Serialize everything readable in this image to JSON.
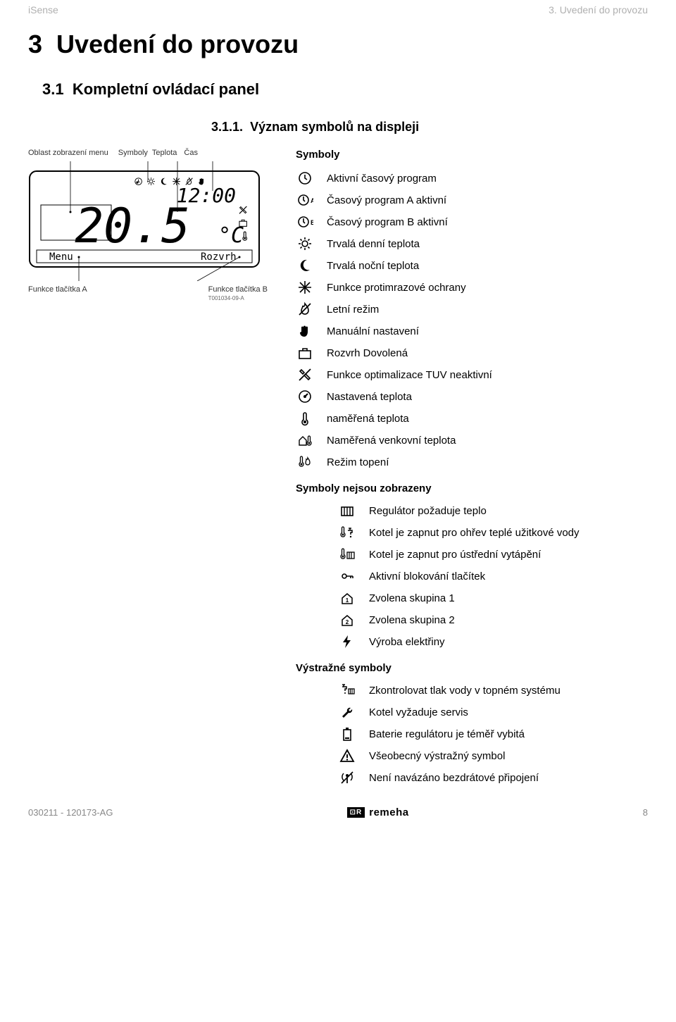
{
  "header": {
    "left": "iSense",
    "right": "3. Uvedení do provozu"
  },
  "section": {
    "number": "3",
    "title": "Uvedení do provozu"
  },
  "subsection": {
    "number": "3.1",
    "title": "Kompletní ovládací panel"
  },
  "subsub": {
    "number": "3.1.1.",
    "title": "Význam symbolů na displeji"
  },
  "diagram": {
    "top_labels": {
      "area": "Oblast zobrazení menu",
      "symbols": "Symboly",
      "temp": "Teplota",
      "time": "Čas"
    },
    "time_value": "12:00",
    "temp_value": "20.5",
    "temp_unit": "°C",
    "btn_left": "Menu",
    "btn_right": "Rozvrh",
    "bottom_labels": {
      "func_a": "Funkce tlačítka A",
      "func_b": "Funkce tlačítka B",
      "ref": "T001034-09-A"
    }
  },
  "legend": {
    "title": "Symboly",
    "group1": [
      {
        "icon": "clock",
        "label": "Aktivní časový program"
      },
      {
        "icon": "clock-a",
        "label": "Časový program A aktivní"
      },
      {
        "icon": "clock-b",
        "label": "Časový program B aktivní"
      },
      {
        "icon": "sun",
        "label": "Trvalá denní teplota"
      },
      {
        "icon": "moon",
        "label": "Trvalá noční teplota"
      },
      {
        "icon": "snowflake",
        "label": "Funkce protimrazové ochrany"
      },
      {
        "icon": "flame-off",
        "label": "Letní režim"
      },
      {
        "icon": "hand",
        "label": "Manuální nastavení"
      },
      {
        "icon": "suitcase",
        "label": "Rozvrh Dovolená"
      },
      {
        "icon": "tool-off",
        "label": "Funkce optimalizace TUV neaktivní"
      },
      {
        "icon": "dial",
        "label": "Nastavená teplota"
      },
      {
        "icon": "thermo",
        "label": "naměřená teplota"
      },
      {
        "icon": "thermo-house",
        "label": "Naměřená venkovní teplota"
      },
      {
        "icon": "thermo-flame",
        "label": "Režim topení"
      }
    ],
    "group2_title": "Symboly nejsou zobrazeny",
    "group2": [
      {
        "icon": "radiator",
        "label": "Regulátor požaduje teplo"
      },
      {
        "icon": "thermo-tap",
        "label": "Kotel je zapnut pro ohřev teplé užitkové vody"
      },
      {
        "icon": "thermo-radiator",
        "label": "Kotel je zapnut pro ústřední vytápění"
      },
      {
        "icon": "key-lock",
        "label": "Aktivní blokování tlačítek"
      },
      {
        "icon": "house-1",
        "label": "Zvolena skupina 1"
      },
      {
        "icon": "house-2",
        "label": "Zvolena skupina 2"
      },
      {
        "icon": "bolt",
        "label": "Výroba elektřiny"
      }
    ],
    "group3_title": "Výstražné symboly",
    "group3": [
      {
        "icon": "tap-gauge",
        "label": "Zkontrolovat tlak vody v topném systému"
      },
      {
        "icon": "wrench",
        "label": "Kotel vyžaduje servis"
      },
      {
        "icon": "battery-low",
        "label": "Baterie regulátoru je téměř vybitá"
      },
      {
        "icon": "warning",
        "label": "Všeobecný výstražný symbol"
      },
      {
        "icon": "antenna-off",
        "label": "Není navázáno bezdrátové připojení"
      }
    ]
  },
  "footer": {
    "left": "030211 - 120173-AG",
    "brand": "remeha",
    "page": "8"
  },
  "colors": {
    "text": "#000000",
    "muted": "#b0b0b0",
    "icon_stroke": "#000000",
    "logo_bg": "#000000"
  }
}
